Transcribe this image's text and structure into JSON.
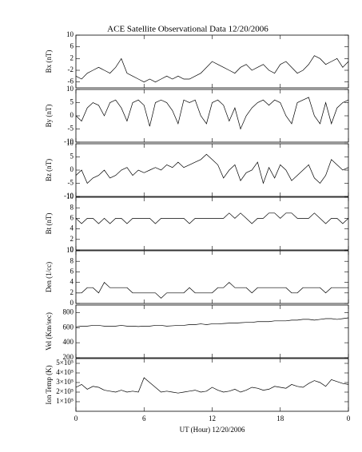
{
  "chart_data": [
    {
      "type": "line",
      "title": "ACE Satellite Observational Data   12/20/2006",
      "ylabel": "Bx (nT)",
      "xlim": [
        0,
        24
      ],
      "ylim": [
        -8,
        10
      ],
      "yticks": [
        -6,
        -2,
        2,
        6,
        10
      ],
      "color": "#000000",
      "x": [
        0,
        0.5,
        1,
        1.5,
        2,
        2.5,
        3,
        3.5,
        4,
        4.5,
        5,
        5.5,
        6,
        6.5,
        7,
        7.5,
        8,
        8.5,
        9,
        9.5,
        10,
        10.5,
        11,
        11.5,
        12,
        12.5,
        13,
        13.5,
        14,
        14.5,
        15,
        15.5,
        16,
        16.5,
        17,
        17.5,
        18,
        18.5,
        19,
        19.5,
        20,
        20.5,
        21,
        21.5,
        22,
        22.5,
        23,
        23.5,
        24
      ],
      "values": [
        -4,
        -5,
        -3,
        -2,
        -1,
        -2,
        -3,
        -1,
        2,
        -3,
        -4,
        -5,
        -6,
        -5,
        -6,
        -5,
        -4,
        -5,
        -4,
        -5,
        -5,
        -4,
        -3,
        -1,
        1,
        0,
        -1,
        -2,
        -3,
        -1,
        0,
        -2,
        -1,
        0,
        -2,
        -3,
        0,
        1,
        -1,
        -3,
        -2,
        0,
        3,
        2,
        0,
        1,
        2,
        -1,
        1
      ]
    },
    {
      "type": "line",
      "ylabel": "By (nT)",
      "xlim": [
        0,
        24
      ],
      "ylim": [
        -10,
        10
      ],
      "yticks": [
        -10,
        -5,
        0,
        5,
        10
      ],
      "color": "#000000",
      "x": [
        0,
        0.5,
        1,
        1.5,
        2,
        2.5,
        3,
        3.5,
        4,
        4.5,
        5,
        5.5,
        6,
        6.5,
        7,
        7.5,
        8,
        8.5,
        9,
        9.5,
        10,
        10.5,
        11,
        11.5,
        12,
        12.5,
        13,
        13.5,
        14,
        14.5,
        15,
        15.5,
        16,
        16.5,
        17,
        17.5,
        18,
        18.5,
        19,
        19.5,
        20,
        20.5,
        21,
        21.5,
        22,
        22.5,
        23,
        23.5,
        24
      ],
      "values": [
        0,
        -2,
        3,
        5,
        4,
        0,
        5,
        6,
        3,
        -2,
        5,
        6,
        4,
        -4,
        5,
        6,
        5,
        2,
        -3,
        6,
        5,
        6,
        0,
        -3,
        5,
        6,
        4,
        -2,
        3,
        -5,
        0,
        3,
        5,
        6,
        4,
        6,
        5,
        0,
        -3,
        5,
        6,
        7,
        0,
        -3,
        5,
        -3,
        3,
        5,
        6
      ]
    },
    {
      "type": "line",
      "ylabel": "Bz (nT)",
      "xlim": [
        0,
        24
      ],
      "ylim": [
        -10,
        10
      ],
      "yticks": [
        -10,
        -5,
        0,
        5,
        10
      ],
      "color": "#000000",
      "x": [
        0,
        0.5,
        1,
        1.5,
        2,
        2.5,
        3,
        3.5,
        4,
        4.5,
        5,
        5.5,
        6,
        6.5,
        7,
        7.5,
        8,
        8.5,
        9,
        9.5,
        10,
        10.5,
        11,
        11.5,
        12,
        12.5,
        13,
        13.5,
        14,
        14.5,
        15,
        15.5,
        16,
        16.5,
        17,
        17.5,
        18,
        18.5,
        19,
        19.5,
        20,
        20.5,
        21,
        21.5,
        22,
        22.5,
        23,
        23.5,
        24
      ],
      "values": [
        -2,
        0,
        -5,
        -3,
        -2,
        0,
        -3,
        -2,
        0,
        1,
        -2,
        0,
        -1,
        0,
        1,
        0,
        2,
        1,
        3,
        1,
        2,
        3,
        4,
        6,
        4,
        2,
        -3,
        0,
        2,
        -4,
        -1,
        0,
        3,
        -5,
        1,
        -3,
        2,
        0,
        -4,
        -2,
        0,
        2,
        -3,
        -5,
        -2,
        4,
        2,
        0,
        1
      ]
    },
    {
      "type": "line",
      "ylabel": "Bt (nT)",
      "xlim": [
        0,
        24
      ],
      "ylim": [
        0,
        10
      ],
      "yticks": [
        0,
        2,
        4,
        6,
        8,
        10
      ],
      "color": "#000000",
      "x": [
        0,
        0.5,
        1,
        1.5,
        2,
        2.5,
        3,
        3.5,
        4,
        4.5,
        5,
        5.5,
        6,
        6.5,
        7,
        7.5,
        8,
        8.5,
        9,
        9.5,
        10,
        10.5,
        11,
        11.5,
        12,
        12.5,
        13,
        13.5,
        14,
        14.5,
        15,
        15.5,
        16,
        16.5,
        17,
        17.5,
        18,
        18.5,
        19,
        19.5,
        20,
        20.5,
        21,
        21.5,
        22,
        22.5,
        23,
        23.5,
        24
      ],
      "values": [
        6,
        5,
        6,
        6,
        5,
        6,
        5,
        6,
        6,
        5,
        6,
        6,
        6,
        6,
        5,
        6,
        6,
        6,
        6,
        6,
        5,
        6,
        6,
        6,
        6,
        6,
        6,
        7,
        6,
        7,
        6,
        5,
        6,
        6,
        7,
        7,
        6,
        7,
        7,
        6,
        6,
        6,
        7,
        6,
        5,
        6,
        6,
        5,
        6
      ]
    },
    {
      "type": "line",
      "ylabel": "Den (1/cc)",
      "xlim": [
        0,
        24
      ],
      "ylim": [
        0,
        10
      ],
      "yticks": [
        0,
        2,
        4,
        6,
        8,
        10
      ],
      "color": "#000000",
      "x": [
        0,
        0.5,
        1,
        1.5,
        2,
        2.5,
        3,
        3.5,
        4,
        4.5,
        5,
        5.5,
        6,
        6.5,
        7,
        7.5,
        8,
        8.5,
        9,
        9.5,
        10,
        10.5,
        11,
        11.5,
        12,
        12.5,
        13,
        13.5,
        14,
        14.5,
        15,
        15.5,
        16,
        16.5,
        17,
        17.5,
        18,
        18.5,
        19,
        19.5,
        20,
        20.5,
        21,
        21.5,
        22,
        22.5,
        23,
        23.5,
        24
      ],
      "values": [
        2,
        2,
        3,
        3,
        2,
        4,
        3,
        3,
        3,
        3,
        2,
        2,
        2,
        2,
        2,
        1,
        2,
        2,
        2,
        2,
        3,
        2,
        2,
        2,
        2,
        3,
        3,
        4,
        3,
        3,
        3,
        2,
        3,
        3,
        3,
        3,
        3,
        3,
        2,
        2,
        3,
        3,
        3,
        3,
        2,
        3,
        3,
        3,
        3
      ]
    },
    {
      "type": "line",
      "ylabel": "Vel (Km/sec)",
      "xlim": [
        0,
        24
      ],
      "ylim": [
        200,
        900
      ],
      "yticks": [
        200,
        400,
        600,
        800
      ],
      "color": "#000000",
      "x": [
        0,
        0.5,
        1,
        1.5,
        2,
        2.5,
        3,
        3.5,
        4,
        4.5,
        5,
        5.5,
        6,
        6.5,
        7,
        7.5,
        8,
        8.5,
        9,
        9.5,
        10,
        10.5,
        11,
        11.5,
        12,
        12.5,
        13,
        13.5,
        14,
        14.5,
        15,
        15.5,
        16,
        16.5,
        17,
        17.5,
        18,
        18.5,
        19,
        19.5,
        20,
        20.5,
        21,
        21.5,
        22,
        22.5,
        23,
        23.5,
        24
      ],
      "values": [
        610,
        620,
        620,
        630,
        630,
        620,
        620,
        620,
        630,
        620,
        620,
        615,
        620,
        620,
        630,
        630,
        620,
        625,
        630,
        630,
        640,
        640,
        650,
        640,
        650,
        650,
        655,
        660,
        660,
        665,
        670,
        670,
        680,
        680,
        680,
        690,
        690,
        690,
        700,
        700,
        710,
        710,
        700,
        710,
        720,
        720,
        710,
        720,
        730
      ]
    },
    {
      "type": "line",
      "ylabel": "Ion Temp (K)",
      "xlabel": "UT (Hour)   12/20/2006",
      "xlim": [
        0,
        24
      ],
      "xticks": [
        0,
        6,
        12,
        18,
        {
          "value": 24,
          "label": "0"
        }
      ],
      "ylim": [
        0,
        550000
      ],
      "yticks": [
        {
          "value": 100000,
          "label": "1×10⁵"
        },
        {
          "value": 200000,
          "label": "2×10⁵"
        },
        {
          "value": 300000,
          "label": "3×10⁵"
        },
        {
          "value": 400000,
          "label": "4×10⁵"
        },
        {
          "value": 500000,
          "label": "5×10⁵"
        }
      ],
      "color": "#000000",
      "x": [
        0,
        0.5,
        1,
        1.5,
        2,
        2.5,
        3,
        3.5,
        4,
        4.5,
        5,
        5.5,
        6,
        6.5,
        7,
        7.5,
        8,
        8.5,
        9,
        9.5,
        10,
        10.5,
        11,
        11.5,
        12,
        12.5,
        13,
        13.5,
        14,
        14.5,
        15,
        15.5,
        16,
        16.5,
        17,
        17.5,
        18,
        18.5,
        19,
        19.5,
        20,
        20.5,
        21,
        21.5,
        22,
        22.5,
        23,
        23.5,
        24
      ],
      "values": [
        250000,
        280000,
        230000,
        260000,
        250000,
        220000,
        210000,
        200000,
        220000,
        200000,
        210000,
        200000,
        350000,
        300000,
        250000,
        200000,
        210000,
        200000,
        190000,
        200000,
        210000,
        220000,
        200000,
        210000,
        250000,
        220000,
        200000,
        210000,
        230000,
        200000,
        220000,
        250000,
        240000,
        220000,
        230000,
        260000,
        250000,
        240000,
        280000,
        260000,
        250000,
        290000,
        320000,
        300000,
        260000,
        330000,
        310000,
        290000,
        280000
      ]
    }
  ]
}
